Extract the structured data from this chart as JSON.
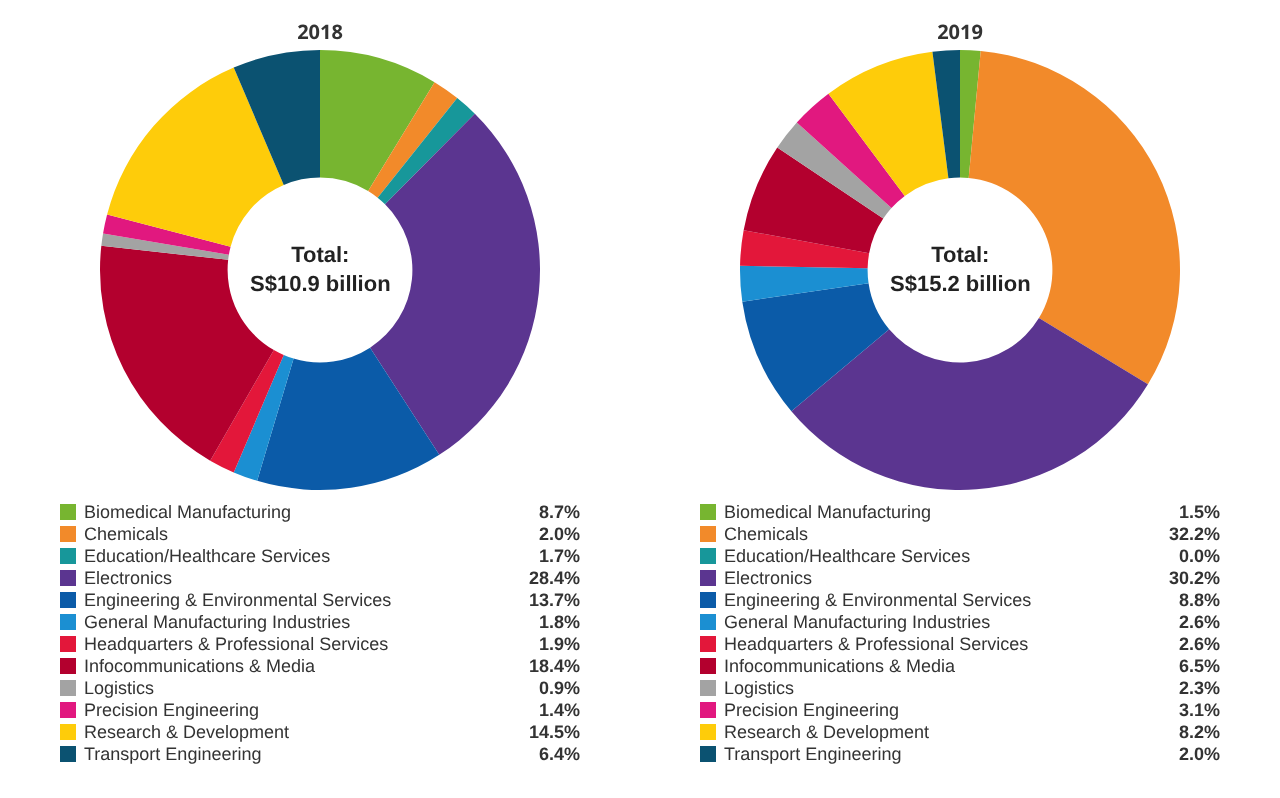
{
  "chart_data": [
    {
      "type": "donut",
      "title": "2018",
      "legend": "bottom",
      "annotations": [
        "Total:\nS$10.9 billion"
      ],
      "categories": [
        "Biomedical Manufacturing",
        "Chemicals",
        "Education/Healthcare Services",
        "Electronics",
        "Engineering & Environmental Services",
        "General Manufacturing Industries",
        "Headquarters & Professional Services",
        "Infocommunications & Media",
        "Logistics",
        "Precision Engineering",
        "Research & Development",
        "Transport Engineering"
      ],
      "values": [
        8.7,
        2.0,
        1.7,
        28.4,
        13.7,
        1.8,
        1.9,
        18.4,
        0.9,
        1.4,
        14.5,
        6.4
      ],
      "value_labels": [
        "8.7%",
        "2.0%",
        "1.7%",
        "28.4%",
        "13.7%",
        "1.8%",
        "1.9%",
        "18.4%",
        "0.9%",
        "1.4%",
        "14.5%",
        "6.4%"
      ],
      "colors": [
        "#77b530",
        "#f28a2a",
        "#17979a",
        "#5b3590",
        "#0b5ba8",
        "#1b8fd2",
        "#e3173a",
        "#b3002e",
        "#a3a3a3",
        "#e1187f",
        "#fecc0a",
        "#0b5271"
      ]
    },
    {
      "type": "donut",
      "title": "2019",
      "legend": "bottom",
      "annotations": [
        "Total:\nS$15.2 billion"
      ],
      "categories": [
        "Biomedical Manufacturing",
        "Chemicals",
        "Education/Healthcare Services",
        "Electronics",
        "Engineering & Environmental Services",
        "General Manufacturing Industries",
        "Headquarters & Professional Services",
        "Infocommunications & Media",
        "Logistics",
        "Precision Engineering",
        "Research & Development",
        "Transport Engineering"
      ],
      "values": [
        1.5,
        32.2,
        0.0,
        30.2,
        8.8,
        2.6,
        2.6,
        6.5,
        2.3,
        3.1,
        8.2,
        2.0
      ],
      "value_labels": [
        "1.5%",
        "32.2%",
        "0.0%",
        "30.2%",
        "8.8%",
        "2.6%",
        "2.6%",
        "6.5%",
        "2.3%",
        "3.1%",
        "8.2%",
        "2.0%"
      ],
      "colors": [
        "#77b530",
        "#f28a2a",
        "#17979a",
        "#5b3590",
        "#0b5ba8",
        "#1b8fd2",
        "#e3173a",
        "#b3002e",
        "#a3a3a3",
        "#e1187f",
        "#fecc0a",
        "#0b5271"
      ]
    }
  ]
}
